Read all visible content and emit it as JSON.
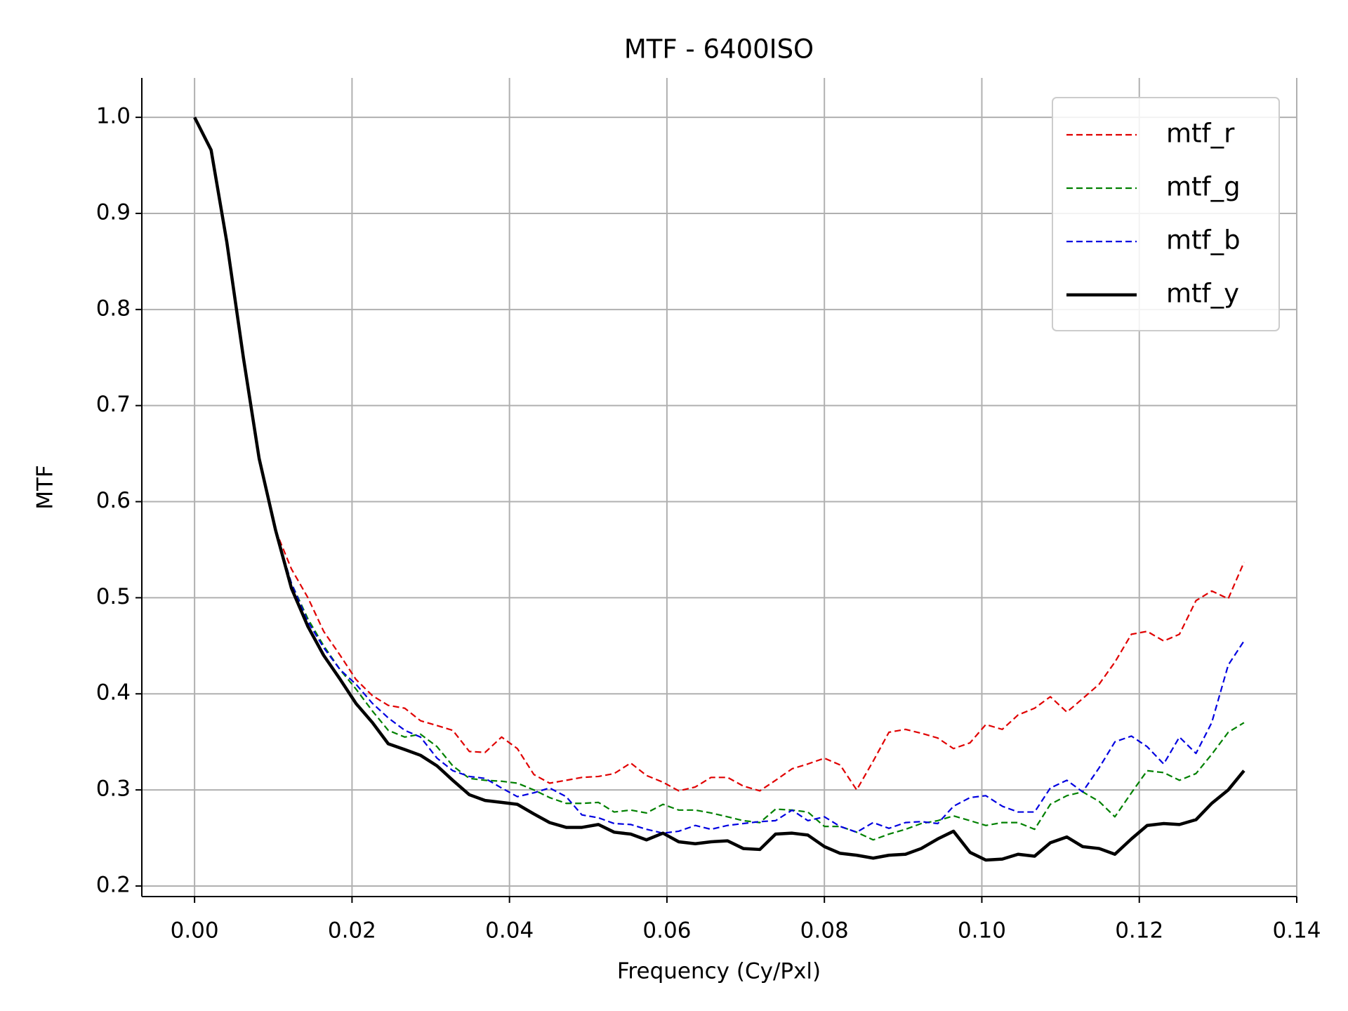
{
  "chart_data": {
    "type": "line",
    "title": "MTF - 6400ISO",
    "xlabel": "Frequency (Cy/Pxl)",
    "ylabel": "MTF",
    "x": [
      0,
      0.0021,
      0.0041,
      0.0062,
      0.0082,
      0.0103,
      0.0123,
      0.0144,
      0.0164,
      0.0185,
      0.0205,
      0.0226,
      0.0246,
      0.0267,
      0.0287,
      0.0308,
      0.0328,
      0.0349,
      0.0369,
      0.039,
      0.041,
      0.0431,
      0.0451,
      0.0472,
      0.0492,
      0.0513,
      0.0533,
      0.0554,
      0.0574,
      0.0595,
      0.0615,
      0.0636,
      0.0656,
      0.0677,
      0.0697,
      0.0718,
      0.0738,
      0.0759,
      0.0779,
      0.08,
      0.082,
      0.0841,
      0.0862,
      0.0882,
      0.0903,
      0.0923,
      0.0944,
      0.0964,
      0.0985,
      0.1005,
      0.1026,
      0.1046,
      0.1067,
      0.1087,
      0.1108,
      0.1128,
      0.1149,
      0.1169,
      0.119,
      0.121,
      0.1231,
      0.1251,
      0.1272,
      0.1292,
      0.1313,
      0.1333
    ],
    "series": [
      {
        "name": "mtf_r",
        "color": "#e00000",
        "linestyle": "dashed",
        "values": [
          1.0,
          0.966,
          0.87,
          0.75,
          0.645,
          0.57,
          0.53,
          0.5,
          0.465,
          0.44,
          0.415,
          0.398,
          0.388,
          0.385,
          0.372,
          0.367,
          0.362,
          0.34,
          0.339,
          0.355,
          0.343,
          0.316,
          0.307,
          0.31,
          0.313,
          0.314,
          0.317,
          0.328,
          0.315,
          0.308,
          0.299,
          0.303,
          0.313,
          0.313,
          0.304,
          0.299,
          0.31,
          0.322,
          0.327,
          0.333,
          0.326,
          0.3,
          0.33,
          0.36,
          0.363,
          0.359,
          0.354,
          0.343,
          0.349,
          0.368,
          0.363,
          0.378,
          0.385,
          0.397,
          0.381,
          0.395,
          0.41,
          0.433,
          0.462,
          0.465,
          0.455,
          0.462,
          0.497,
          0.507,
          0.499,
          0.537
        ]
      },
      {
        "name": "mtf_g",
        "color": "#008000",
        "linestyle": "dashed",
        "values": [
          1.0,
          0.966,
          0.87,
          0.75,
          0.645,
          0.57,
          0.515,
          0.478,
          0.45,
          0.425,
          0.405,
          0.382,
          0.362,
          0.355,
          0.358,
          0.345,
          0.325,
          0.312,
          0.31,
          0.309,
          0.307,
          0.3,
          0.292,
          0.286,
          0.286,
          0.287,
          0.277,
          0.279,
          0.276,
          0.285,
          0.279,
          0.279,
          0.276,
          0.272,
          0.268,
          0.266,
          0.28,
          0.279,
          0.277,
          0.262,
          0.262,
          0.256,
          0.248,
          0.254,
          0.259,
          0.265,
          0.268,
          0.273,
          0.268,
          0.263,
          0.266,
          0.266,
          0.259,
          0.285,
          0.294,
          0.298,
          0.288,
          0.272,
          0.297,
          0.32,
          0.318,
          0.31,
          0.317,
          0.337,
          0.36,
          0.37
        ]
      },
      {
        "name": "mtf_b",
        "color": "#0000e0",
        "linestyle": "dashed",
        "values": [
          1.0,
          0.966,
          0.87,
          0.75,
          0.645,
          0.57,
          0.515,
          0.475,
          0.448,
          0.425,
          0.41,
          0.39,
          0.375,
          0.362,
          0.355,
          0.333,
          0.32,
          0.314,
          0.312,
          0.302,
          0.293,
          0.297,
          0.302,
          0.293,
          0.274,
          0.271,
          0.265,
          0.264,
          0.259,
          0.255,
          0.257,
          0.263,
          0.259,
          0.263,
          0.265,
          0.267,
          0.268,
          0.279,
          0.268,
          0.272,
          0.262,
          0.256,
          0.266,
          0.26,
          0.266,
          0.267,
          0.265,
          0.283,
          0.292,
          0.294,
          0.283,
          0.277,
          0.277,
          0.302,
          0.31,
          0.298,
          0.323,
          0.35,
          0.356,
          0.345,
          0.327,
          0.355,
          0.338,
          0.37,
          0.43,
          0.455
        ]
      },
      {
        "name": "mtf_y",
        "color": "#000000",
        "linestyle": "solid",
        "values": [
          1.0,
          0.966,
          0.87,
          0.75,
          0.645,
          0.57,
          0.51,
          0.47,
          0.44,
          0.415,
          0.39,
          0.37,
          0.348,
          0.342,
          0.336,
          0.325,
          0.31,
          0.295,
          0.289,
          0.287,
          0.285,
          0.275,
          0.266,
          0.261,
          0.261,
          0.264,
          0.256,
          0.254,
          0.248,
          0.255,
          0.246,
          0.244,
          0.246,
          0.247,
          0.239,
          0.238,
          0.254,
          0.255,
          0.253,
          0.241,
          0.234,
          0.232,
          0.229,
          0.232,
          0.233,
          0.239,
          0.249,
          0.257,
          0.235,
          0.227,
          0.228,
          0.233,
          0.231,
          0.245,
          0.251,
          0.241,
          0.239,
          0.233,
          0.249,
          0.263,
          0.265,
          0.264,
          0.269,
          0.286,
          0.3,
          0.32
        ]
      }
    ],
    "xlim": [
      -0.0067,
      0.14
    ],
    "xticks": [
      {
        "value": 0,
        "label": "0.00"
      },
      0.02,
      0.04,
      0.06,
      0.08,
      {
        "value": 0.1,
        "label": "0.10"
      },
      0.12,
      0.14
    ],
    "ylim": [
      0.189,
      1.041
    ],
    "yticks": [
      0.2,
      0.3,
      0.4,
      0.5,
      0.6,
      0.7,
      0.8,
      0.9,
      {
        "value": 1,
        "label": "1.0"
      }
    ],
    "grid": true,
    "legend": "upper right"
  }
}
